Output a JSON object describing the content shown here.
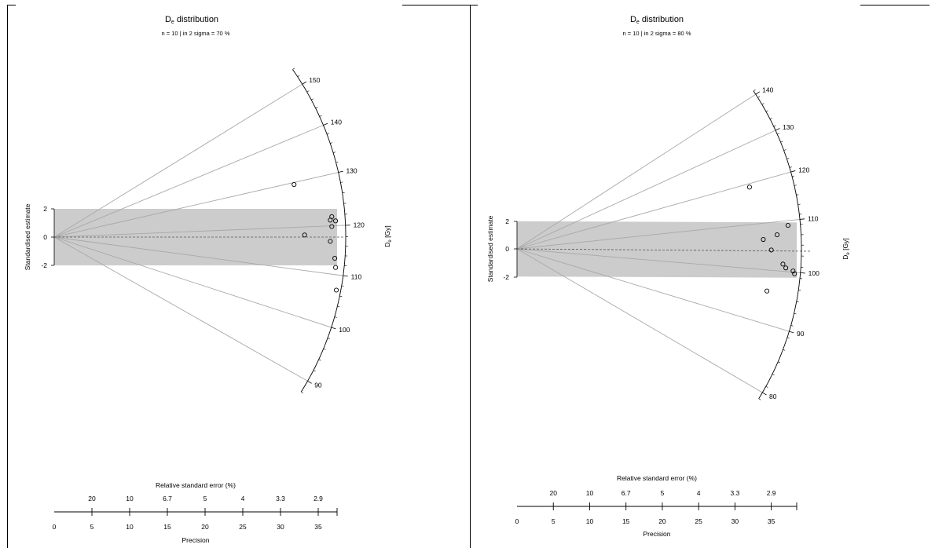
{
  "chart_data": [
    {
      "type": "radial",
      "title_main": "D",
      "title_sub": "e",
      "title_rest": " distribution",
      "subtitle": "n = 10 | in 2 sigma = 70 %",
      "y_axis_label": "Standardised estimate",
      "y_ticks": [
        -2,
        0,
        2
      ],
      "z_axis_label_main": "D",
      "z_axis_label_sub": "e",
      "z_axis_label_rest": " [Gy]",
      "z_ticks": [
        90,
        100,
        110,
        120,
        130,
        140,
        150
      ],
      "z_range": [
        88,
        154
      ],
      "central_value": 117.9,
      "x_axis_label": "Precision",
      "x_ticks": [
        0,
        5,
        10,
        15,
        20,
        25,
        30,
        35
      ],
      "x_range": [
        0,
        37.5
      ],
      "rse_axis_label": "Relative standard error (%)",
      "rse_labels": [
        "20",
        "10",
        "6.7",
        "5",
        "4",
        "3.3",
        "2.9"
      ],
      "band": [
        -2,
        2
      ],
      "points": [
        {
          "precision": 31.8,
          "std_est": 3.72
        },
        {
          "precision": 33.2,
          "std_est": 0.15
        },
        {
          "precision": 36.8,
          "std_est": 1.45
        },
        {
          "precision": 36.6,
          "std_est": 1.2
        },
        {
          "precision": 37.3,
          "std_est": 1.15
        },
        {
          "precision": 36.8,
          "std_est": 0.75
        },
        {
          "precision": 36.6,
          "std_est": -0.3
        },
        {
          "precision": 37.2,
          "std_est": -1.5
        },
        {
          "precision": 37.3,
          "std_est": -2.15
        },
        {
          "precision": 37.4,
          "std_est": -3.75
        }
      ]
    },
    {
      "type": "radial",
      "title_main": "D",
      "title_sub": "e",
      "title_rest": " distribution",
      "subtitle": "n = 10 | in 2 sigma = 80 %",
      "y_axis_label": "Standardised estimate",
      "y_ticks": [
        -2,
        0,
        2
      ],
      "z_axis_label_main": "D",
      "z_axis_label_sub": "e",
      "z_axis_label_rest": " [Gy]",
      "z_ticks": [
        80,
        90,
        100,
        110,
        120,
        130,
        140
      ],
      "z_range": [
        79,
        141
      ],
      "central_value": 104.3,
      "x_axis_label": "Precision",
      "x_ticks": [
        0,
        5,
        10,
        15,
        20,
        25,
        30,
        35
      ],
      "x_range": [
        0,
        38.5
      ],
      "rse_axis_label": "Relative standard error (%)",
      "rse_labels": [
        "20",
        "10",
        "6.7",
        "5",
        "4",
        "3.3",
        "2.9"
      ],
      "band": [
        -2,
        2
      ],
      "points": [
        {
          "precision": 32.0,
          "std_est": 4.47
        },
        {
          "precision": 37.3,
          "std_est": 1.7
        },
        {
          "precision": 35.8,
          "std_est": 1.02
        },
        {
          "precision": 33.9,
          "std_est": 0.68
        },
        {
          "precision": 35.0,
          "std_est": -0.08
        },
        {
          "precision": 36.6,
          "std_est": -1.1
        },
        {
          "precision": 37.0,
          "std_est": -1.38
        },
        {
          "precision": 38.0,
          "std_est": -1.6
        },
        {
          "precision": 38.2,
          "std_est": -1.8
        },
        {
          "precision": 34.4,
          "std_est": -3.05
        }
      ]
    }
  ]
}
